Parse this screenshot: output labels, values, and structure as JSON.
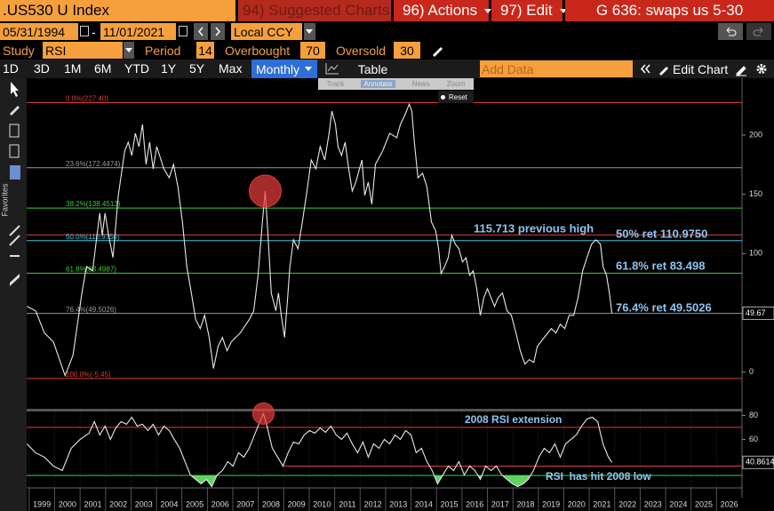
{
  "header": {
    "ticker": ".US530 U Index",
    "suggested": "94) Suggested Charts",
    "actions": "96) Actions",
    "edit": "97) Edit",
    "function": "G 636: swaps us 5-30"
  },
  "range": {
    "start": "05/31/1994",
    "separator": "-",
    "end": "11/01/2021",
    "currency": "Local CCY"
  },
  "study": {
    "label": "Study",
    "name": "RSI",
    "period_label": "Period",
    "period": 14,
    "overbought_label": "Overbought",
    "overbought": 70,
    "oversold_label": "Oversold",
    "oversold": 30
  },
  "toolbar": {
    "periods": [
      "1D",
      "3D",
      "1M",
      "6M",
      "YTD",
      "1Y",
      "5Y",
      "Max"
    ],
    "frequency": "Monthly",
    "table": "Table",
    "add_data": "Add Data",
    "edit_chart": "Edit Chart"
  },
  "tools": {
    "items": [
      "Track",
      "Annotate",
      "News",
      "Zoom"
    ],
    "reset": "Reset"
  },
  "sidebar": {
    "label": "Favorites"
  },
  "chart_data": [
    {
      "type": "line",
      "color": "#e8e8e8",
      "xlim": [
        1998.9,
        2027.0
      ],
      "ylim": [
        -31,
        248
      ],
      "yticks": [
        0,
        100,
        150,
        200
      ],
      "x": [
        1998.91,
        1999.25,
        1999.6,
        1999.95,
        2000.13,
        2000.41,
        2000.72,
        2001.07,
        2001.25,
        2001.49,
        2001.77,
        2001.87,
        2001.98,
        2002.12,
        2002.29,
        2002.5,
        2002.75,
        2002.89,
        2003.03,
        2003.17,
        2003.31,
        2003.45,
        2003.59,
        2003.73,
        2003.87,
        2004.01,
        2004.29,
        2004.5,
        2004.67,
        2004.84,
        2005.02,
        2005.19,
        2005.37,
        2005.54,
        2005.72,
        2005.89,
        2006.07,
        2006.24,
        2006.42,
        2006.59,
        2006.77,
        2006.94,
        2007.29,
        2007.64,
        2007.82,
        2007.99,
        2008.16,
        2008.27,
        2008.37,
        2008.51,
        2008.69,
        2008.79,
        2008.9,
        2009.03,
        2009.14,
        2009.24,
        2009.38,
        2009.56,
        2009.73,
        2009.91,
        2010.08,
        2010.26,
        2010.43,
        2010.61,
        2010.78,
        2010.89,
        2011.03,
        2011.13,
        2011.27,
        2011.41,
        2011.55,
        2011.69,
        2011.83,
        2012.07,
        2012.18,
        2012.32,
        2012.46,
        2012.6,
        2012.88,
        2013.16,
        2013.44,
        2013.58,
        2013.75,
        2013.93,
        2014.03,
        2014.13,
        2014.27,
        2014.45,
        2014.62,
        2014.8,
        2014.97,
        2015.08,
        2015.18,
        2015.32,
        2015.46,
        2015.6,
        2015.74,
        2015.88,
        2016.02,
        2016.16,
        2016.3,
        2016.44,
        2016.58,
        2016.72,
        2016.86,
        2017.0,
        2017.14,
        2017.28,
        2017.42,
        2017.59,
        2017.77,
        2017.94,
        2018.12,
        2018.29,
        2018.47,
        2018.64,
        2018.82,
        2018.96,
        2019.23,
        2019.51,
        2019.69,
        2019.86,
        2020.04,
        2020.21,
        2020.39,
        2020.56,
        2020.74,
        2020.91,
        2021.09,
        2021.26,
        2021.44,
        2021.54,
        2021.68,
        2021.79,
        2021.89
      ],
      "values": [
        55.4,
        51.7,
        33.0,
        25.5,
        14.2,
        -3.0,
        14.2,
        66.7,
        89.1,
        85.4,
        134.1,
        115.4,
        134.1,
        115.4,
        96.6,
        149.1,
        186.5,
        194.0,
        182.8,
        201.5,
        190.3,
        209.0,
        175.3,
        194.0,
        171.5,
        190.3,
        171.5,
        164.0,
        175.3,
        156.6,
        126.6,
        89.1,
        66.7,
        44.2,
        36.7,
        47.9,
        29.2,
        3.0,
        21.7,
        29.2,
        18.0,
        25.5,
        33.0,
        44.2,
        51.7,
        81.6,
        126.6,
        152.8,
        119.1,
        66.7,
        51.7,
        66.7,
        47.9,
        29.2,
        59.2,
        89.1,
        111.6,
        104.1,
        126.6,
        152.8,
        179.0,
        171.5,
        190.3,
        179.0,
        201.5,
        220.2,
        209.0,
        190.3,
        182.8,
        194.0,
        171.5,
        152.8,
        160.3,
        179.0,
        149.1,
        160.3,
        141.6,
        175.3,
        186.5,
        201.5,
        197.8,
        209.0,
        216.5,
        226.2,
        220.2,
        194.0,
        164.0,
        167.8,
        156.6,
        126.6,
        119.1,
        104.1,
        83.1,
        89.1,
        96.6,
        115.4,
        107.9,
        104.1,
        92.9,
        96.6,
        81.6,
        85.4,
        70.4,
        47.9,
        62.9,
        70.4,
        62.9,
        55.4,
        62.9,
        66.7,
        51.7,
        47.9,
        33.0,
        18.0,
        6.7,
        10.5,
        8.2,
        21.7,
        29.2,
        36.7,
        33.0,
        40.4,
        36.7,
        47.9,
        47.9,
        62.9,
        85.4,
        96.6,
        107.9,
        111.6,
        107.9,
        89.1,
        81.6,
        66.7,
        49.67
      ],
      "levels": [
        {
          "value": 227.4,
          "label": "0.0%(227.40)",
          "color": "#e03a3a"
        },
        {
          "value": 172.4474,
          "label": "23.6%(172.4474)",
          "color": "#9a9a9a"
        },
        {
          "value": 138.4513,
          "label": "38.2%(138.4513)",
          "color": "#3ccf3c"
        },
        {
          "value": 110.975,
          "label": "50.0%(110.9750)",
          "color": "#3cc8d8"
        },
        {
          "value": 83.4987,
          "label": "61.8%(83.4987)",
          "color": "#3ccf3c"
        },
        {
          "value": 49.5026,
          "label": "76.4%(49.5026)",
          "color": "#9a9a9a"
        },
        {
          "value": -5.45,
          "label": "100.0%(-5.45)",
          "color": "#e03a3a"
        }
      ],
      "hlines": [
        {
          "value": 115.713,
          "color": "#e03a3a"
        }
      ],
      "annotations": [
        "115.713 previous high",
        "50% ret 110.9750",
        "61.8% ret 83.498",
        "76.4% ret 49.5026"
      ],
      "annotation_color": "#8ec5f0"
    },
    {
      "type": "line",
      "color": "#e8e8e8",
      "xlim": [
        1998.9,
        2027.0
      ],
      "ylim": [
        20,
        84
      ],
      "yticks": [
        60,
        80
      ],
      "xticks": [
        1999,
        2000,
        2001,
        2002,
        2003,
        2004,
        2005,
        2006,
        2007,
        2008,
        2009,
        2010,
        2011,
        2012,
        2013,
        2014,
        2015,
        2016,
        2017,
        2018,
        2019,
        2020,
        2021,
        2022,
        2023,
        2024,
        2025,
        2026
      ],
      "x": [
        1998.91,
        1999.25,
        1999.6,
        1999.95,
        2000.3,
        2000.65,
        2001.0,
        2001.35,
        2001.56,
        2001.77,
        2001.98,
        2002.19,
        2002.4,
        2002.61,
        2002.82,
        2003.03,
        2003.24,
        2003.45,
        2003.66,
        2003.87,
        2004.08,
        2004.29,
        2004.5,
        2004.7,
        2004.91,
        2005.12,
        2005.33,
        2005.54,
        2005.75,
        2005.96,
        2006.17,
        2006.38,
        2006.59,
        2006.8,
        2007.01,
        2007.22,
        2007.43,
        2007.64,
        2007.85,
        2008.06,
        2008.2,
        2008.34,
        2008.55,
        2008.76,
        2008.97,
        2009.17,
        2009.38,
        2009.59,
        2009.8,
        2010.01,
        2010.22,
        2010.43,
        2010.64,
        2010.85,
        2011.06,
        2011.27,
        2011.48,
        2011.69,
        2011.9,
        2012.11,
        2012.32,
        2012.53,
        2012.74,
        2012.95,
        2013.16,
        2013.37,
        2013.58,
        2013.79,
        2014.0,
        2014.2,
        2014.41,
        2014.62,
        2014.83,
        2015.04,
        2015.25,
        2015.46,
        2015.67,
        2015.88,
        2016.09,
        2016.3,
        2016.51,
        2016.72,
        2016.93,
        2017.14,
        2017.35,
        2017.56,
        2017.77,
        2017.98,
        2018.19,
        2018.4,
        2018.6,
        2018.81,
        2019.02,
        2019.23,
        2019.44,
        2019.65,
        2019.86,
        2020.07,
        2020.28,
        2020.49,
        2020.7,
        2020.91,
        2021.12,
        2021.33,
        2021.54,
        2021.75,
        2021.89
      ],
      "values": [
        56.3,
        48.9,
        45.2,
        37.8,
        34.1,
        52.6,
        60.0,
        65.2,
        74.8,
        63.7,
        71.1,
        60.0,
        69.6,
        74.8,
        72.6,
        78.5,
        71.1,
        72.6,
        67.4,
        72.6,
        63.7,
        71.1,
        67.4,
        60.0,
        52.6,
        41.5,
        30.4,
        26.7,
        23.0,
        26.7,
        20.7,
        30.4,
        34.1,
        41.5,
        37.8,
        48.9,
        45.2,
        52.6,
        63.7,
        74.8,
        81.5,
        71.1,
        52.6,
        45.2,
        37.8,
        48.9,
        57.8,
        56.3,
        63.7,
        67.4,
        65.2,
        69.6,
        65.9,
        71.1,
        63.7,
        60.0,
        65.2,
        56.3,
        48.9,
        57.8,
        45.2,
        56.3,
        52.6,
        60.0,
        56.3,
        63.7,
        60.0,
        67.4,
        63.7,
        48.9,
        52.6,
        41.5,
        34.1,
        23.0,
        30.4,
        37.8,
        34.1,
        41.5,
        30.4,
        37.8,
        34.1,
        26.7,
        37.8,
        34.1,
        37.8,
        30.4,
        26.7,
        23.0,
        20.7,
        23.0,
        26.7,
        34.1,
        45.2,
        52.6,
        48.9,
        56.3,
        45.2,
        56.3,
        60.0,
        63.7,
        71.1,
        77.0,
        78.5,
        74.8,
        56.3,
        45.2,
        40.8614
      ],
      "overbought_color": "#e03a3a",
      "oversold_color": "#3ccf3c",
      "shade_color": "#5fd35f",
      "annotations": [
        "2008 RSI extension",
        "RSI  has hit 2008 low"
      ],
      "annotation_color": "#8ec5f0"
    }
  ]
}
